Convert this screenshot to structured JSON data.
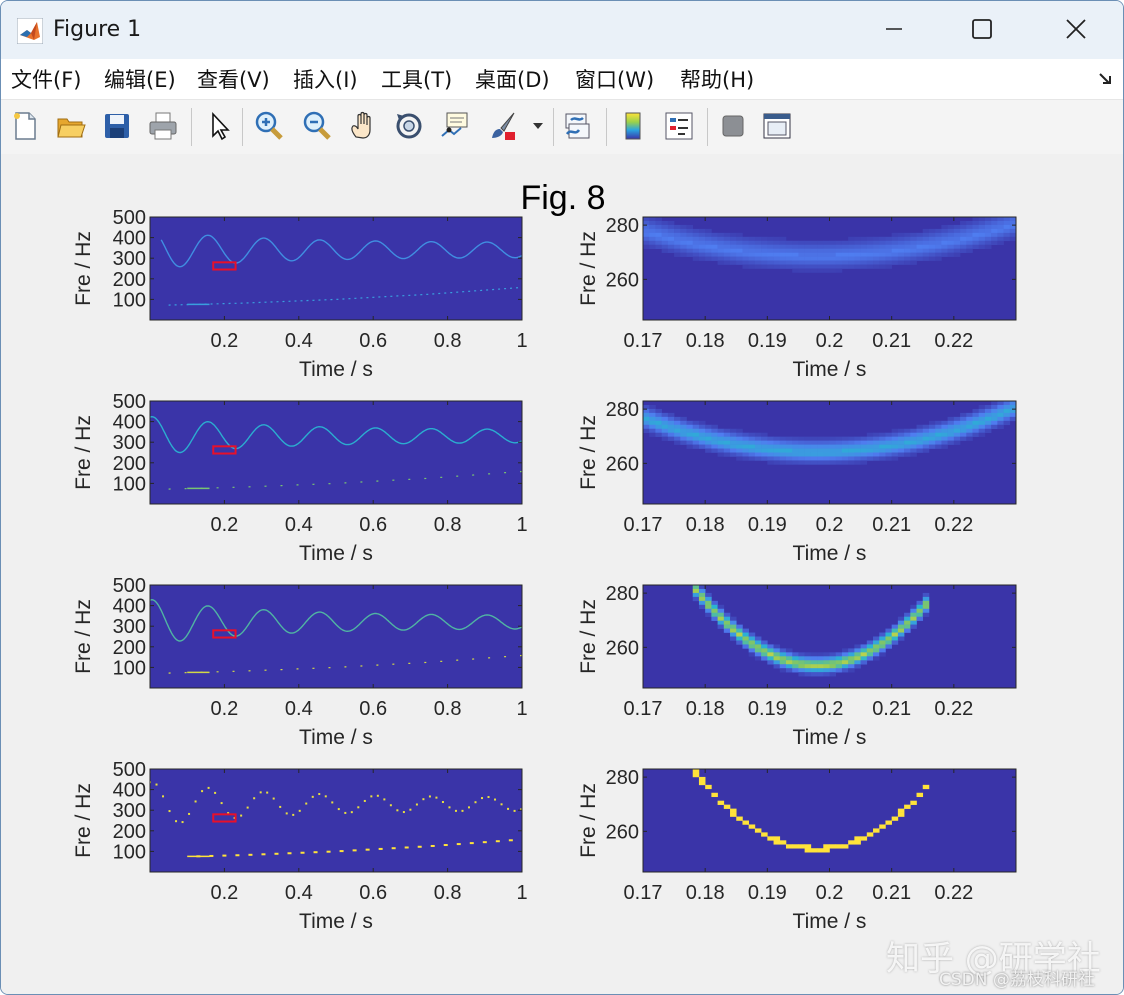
{
  "window": {
    "title": "Figure 1",
    "controls": [
      "minimize",
      "maximize",
      "close"
    ]
  },
  "menu": {
    "items": [
      "文件(F)",
      "编辑(E)",
      "查看(V)",
      "插入(I)",
      "工具(T)",
      "桌面(D)",
      "窗口(W)",
      "帮助(H)"
    ]
  },
  "toolbar": {
    "icons": [
      "new-figure-icon",
      "open-file-icon",
      "save-icon",
      "print-icon",
      "select-arrow-icon",
      "zoom-in-icon",
      "zoom-out-icon",
      "pan-hand-icon",
      "rotate-3d-icon",
      "data-cursor-icon",
      "brush-icon",
      "link-plot-icon",
      "colorbar-icon",
      "legend-icon",
      "hide-tools-icon",
      "show-tools-icon"
    ]
  },
  "figure": {
    "suptitle": "Fig. 8",
    "xlabel": "Time / s",
    "ylabel": "Fre / Hz",
    "colors": {
      "background": "#3a34a8",
      "ridge_low": "#4f7df0",
      "ridge_high": "#ffe33a",
      "zoom_box": "#e8102a"
    }
  },
  "chart_data": [
    {
      "type": "heatmap",
      "panel": "row1-full",
      "xlim": [
        0,
        1
      ],
      "ylim": [
        0,
        500
      ],
      "xticks": [
        "0.2",
        "0.4",
        "0.6",
        "0.8",
        "1"
      ],
      "yticks": [
        "100",
        "200",
        "300",
        "400",
        "500"
      ],
      "xlabel": "Time / s",
      "ylabel": "Fre / Hz",
      "zoom_box": {
        "x": [
          0.17,
          0.23
        ],
        "y": [
          245,
          280
        ]
      },
      "components": [
        {
          "name": "",
          "kind": "sinusoidal",
          "center_hz": 340,
          "amplitude_hz": [
            95,
            35
          ],
          "period_s": 0.15,
          "x_range": [
            0.03,
            1
          ],
          "intensity": 0.35
        },
        {
          "name": "",
          "kind": "chirp",
          "x": [
            0,
            0.25,
            0.5,
            0.75,
            1
          ],
          "y": [
            70,
            82,
            100,
            125,
            158
          ],
          "intensity": 0.4
        }
      ]
    },
    {
      "type": "heatmap",
      "panel": "row1-zoom",
      "xlim": [
        0.17,
        0.23
      ],
      "ylim": [
        245,
        283
      ],
      "xticks": [
        "0.17",
        "0.18",
        "0.19",
        "0.2",
        "0.21",
        "0.22"
      ],
      "yticks": [
        "260",
        "280"
      ],
      "xlabel": "Time / s",
      "ylabel": "Fre / Hz",
      "ridge": {
        "x_min": 0.198,
        "y_min": 269,
        "x_span": [
          0.17,
          0.23
        ],
        "y_edge": 281,
        "peak_intensity": 0.25,
        "spread": "wide"
      }
    },
    {
      "type": "heatmap",
      "panel": "row2-full",
      "xlim": [
        0,
        1
      ],
      "ylim": [
        0,
        500
      ],
      "xticks": [
        "0.2",
        "0.4",
        "0.6",
        "0.8",
        "1"
      ],
      "yticks": [
        "100",
        "200",
        "300",
        "400",
        "500"
      ],
      "xlabel": "Time / s",
      "ylabel": "Fre / Hz",
      "zoom_box": {
        "x": [
          0.17,
          0.23
        ],
        "y": [
          245,
          280
        ]
      },
      "components": [
        {
          "name": "",
          "kind": "sinusoidal",
          "center_hz": 330,
          "amplitude_hz": [
            95,
            30
          ],
          "period_s": 0.15,
          "x_range": [
            0.0,
            1
          ],
          "intensity": 0.5
        },
        {
          "name": "",
          "kind": "chirp",
          "x": [
            0,
            0.25,
            0.5,
            0.75,
            1
          ],
          "y": [
            70,
            82,
            100,
            125,
            158
          ],
          "intensity": 0.7
        }
      ]
    },
    {
      "type": "heatmap",
      "panel": "row2-zoom",
      "xlim": [
        0.17,
        0.23
      ],
      "ylim": [
        245,
        283
      ],
      "xticks": [
        "0.17",
        "0.18",
        "0.19",
        "0.2",
        "0.21",
        "0.22"
      ],
      "yticks": [
        "260",
        "280"
      ],
      "xlabel": "Time / s",
      "ylabel": "Fre / Hz",
      "ridge": {
        "x_min": 0.198,
        "y_min": 264.5,
        "x_span": [
          0.17,
          0.23
        ],
        "y_edge": 281,
        "peak_intensity": 0.45,
        "spread": "medium"
      }
    },
    {
      "type": "heatmap",
      "panel": "row3-full",
      "xlim": [
        0,
        1
      ],
      "ylim": [
        0,
        500
      ],
      "xticks": [
        "0.2",
        "0.4",
        "0.6",
        "0.8",
        "1"
      ],
      "yticks": [
        "100",
        "200",
        "300",
        "400",
        "500"
      ],
      "xlabel": "Time / s",
      "ylabel": "Fre / Hz",
      "zoom_box": {
        "x": [
          0.17,
          0.23
        ],
        "y": [
          245,
          280
        ]
      },
      "components": [
        {
          "name": "",
          "kind": "sinusoidal",
          "center_hz": 320,
          "amplitude_hz": [
            110,
            30
          ],
          "period_s": 0.15,
          "x_range": [
            0.0,
            1
          ],
          "intensity": 0.6
        },
        {
          "name": "",
          "kind": "chirp",
          "x": [
            0,
            0.25,
            0.5,
            0.75,
            1
          ],
          "y": [
            70,
            82,
            100,
            125,
            158
          ],
          "intensity": 0.9
        }
      ]
    },
    {
      "type": "heatmap",
      "panel": "row3-zoom",
      "xlim": [
        0.17,
        0.23
      ],
      "ylim": [
        245,
        283
      ],
      "xticks": [
        "0.17",
        "0.18",
        "0.19",
        "0.2",
        "0.21",
        "0.22"
      ],
      "yticks": [
        "260",
        "280"
      ],
      "xlabel": "Time / s",
      "ylabel": "Fre / Hz",
      "ridge": {
        "x_min": 0.198,
        "y_min": 253.5,
        "x_span": [
          0.179,
          0.216
        ],
        "y_edge": 280,
        "peak_intensity": 0.85,
        "spread": "narrow"
      }
    },
    {
      "type": "heatmap",
      "panel": "row4-full",
      "xlim": [
        0,
        1
      ],
      "ylim": [
        0,
        500
      ],
      "xticks": [
        "0.2",
        "0.4",
        "0.6",
        "0.8",
        "1"
      ],
      "yticks": [
        "100",
        "200",
        "300",
        "400",
        "500"
      ],
      "xlabel": "Time / s",
      "ylabel": "Fre / Hz",
      "zoom_box": {
        "x": [
          0.17,
          0.23
        ],
        "y": [
          245,
          280
        ]
      },
      "components": [
        {
          "name": "",
          "kind": "sinusoidal-sparse",
          "center_hz": 330,
          "amplitude_hz": [
            110,
            30
          ],
          "period_s": 0.15,
          "x_range": [
            0.0,
            1
          ],
          "intensity": 0.95
        },
        {
          "name": "",
          "kind": "chirp-sparse",
          "x": [
            0,
            0.25,
            0.5,
            0.75,
            1
          ],
          "y": [
            70,
            82,
            100,
            125,
            158
          ],
          "intensity": 1.0
        }
      ]
    },
    {
      "type": "heatmap",
      "panel": "row4-zoom",
      "xlim": [
        0.17,
        0.23
      ],
      "ylim": [
        245,
        283
      ],
      "xticks": [
        "0.17",
        "0.18",
        "0.19",
        "0.2",
        "0.21",
        "0.22"
      ],
      "yticks": [
        "260",
        "280"
      ],
      "xlabel": "Time / s",
      "ylabel": "Fre / Hz",
      "ridge": {
        "x_min": 0.198,
        "y_min": 253.5,
        "x_span": [
          0.179,
          0.216
        ],
        "y_edge": 280,
        "peak_intensity": 1.0,
        "spread": "single"
      }
    }
  ],
  "watermark": {
    "line1": "知乎 @研学社",
    "line2": "CSDN @荔枝科研社"
  }
}
